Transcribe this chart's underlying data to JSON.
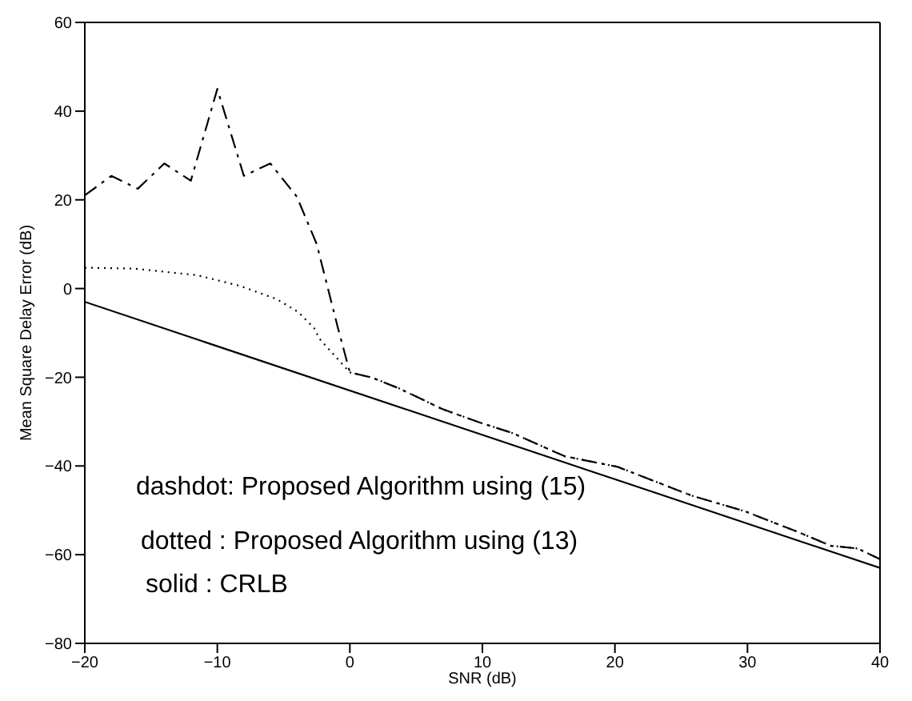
{
  "chart_data": {
    "type": "line",
    "xlabel": "SNR (dB)",
    "ylabel": "Mean Square Delay Error (dB)",
    "xlim": [
      -20,
      40
    ],
    "xticks": [
      -20,
      -10,
      0,
      10,
      20,
      30,
      40
    ],
    "ylim": [
      -80,
      60
    ],
    "yticks": [
      -80,
      -60,
      -40,
      -20,
      0,
      20,
      40,
      60
    ],
    "grid": false,
    "legend": false,
    "marker": "none",
    "series": [
      {
        "color": "#000000",
        "line_style": "dashed",
        "x": [
          -20,
          -18,
          -16,
          -14,
          -12,
          -10,
          -8,
          -6,
          -4,
          -2.5,
          -0.9,
          0,
          1.7,
          3.7,
          7,
          9.8,
          12.2,
          16.2,
          20.2,
          25.8,
          29.8,
          33.9,
          36.3,
          38.3,
          40
        ],
        "values": [
          21,
          25.4,
          22.5,
          28.2,
          24.3,
          45,
          25.4,
          28.2,
          20.7,
          10,
          -8.9,
          -18.9,
          -20.1,
          -22.5,
          -27.2,
          -30.2,
          -32.5,
          -37.8,
          -40.2,
          -46.7,
          -50.2,
          -55,
          -58,
          -58.6,
          -61
        ]
      },
      {
        "color": "#000000",
        "line_style": "dotted",
        "x": [
          -20,
          -16.3,
          -11.5,
          -8.3,
          -5.5,
          -3.9,
          -2.7,
          -2.3,
          -0.7,
          0,
          1.7,
          3.7,
          7,
          9.8,
          12.2,
          16.2,
          20.2,
          25.8,
          29.8,
          33.9,
          36.3,
          38.3,
          40
        ],
        "values": [
          4.7,
          4.5,
          3,
          0.6,
          -2.4,
          -5.3,
          -8.9,
          -11.3,
          -16.6,
          -18.9,
          -20.1,
          -22.5,
          -27.2,
          -30.2,
          -32.5,
          -37.8,
          -40.2,
          -46.7,
          -50.2,
          -55,
          -58,
          -58.6,
          -61
        ]
      },
      {
        "color": "#000000",
        "line_style": "solid",
        "x": [
          -20,
          40
        ],
        "values": [
          -3,
          -63
        ]
      }
    ],
    "annotations": [
      "dashdot: Proposed Algorithm using (15)",
      "dotted : Proposed Algorithm using (13)",
      "solid : CRLB"
    ]
  }
}
